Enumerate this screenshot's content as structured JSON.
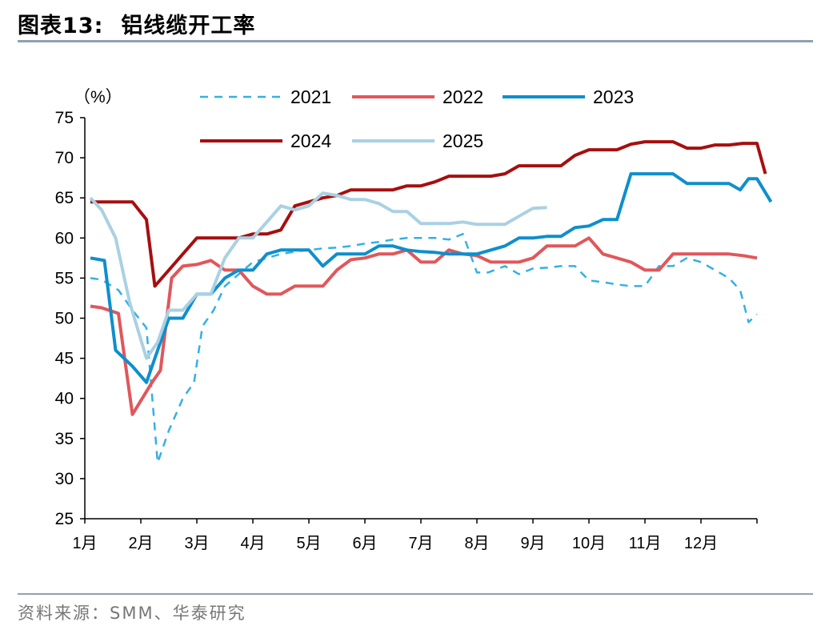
{
  "figure": {
    "number": "图表13:",
    "title": "铝线缆开工率",
    "source": "资料来源：SMM、华泰研究"
  },
  "chart_data": {
    "type": "line",
    "title": "铝线缆开工率",
    "ylabel": "（%）",
    "xlabel": "",
    "ylim": [
      25,
      75
    ],
    "yticks": [
      25,
      30,
      35,
      40,
      45,
      50,
      55,
      60,
      65,
      70,
      75
    ],
    "x_domain": [
      0,
      12
    ],
    "x_tick_labels": [
      "1月",
      "2月",
      "3月",
      "4月",
      "5月",
      "6月",
      "7月",
      "8月",
      "9月",
      "10月",
      "11月",
      "12月"
    ],
    "grid": false,
    "legend_position": "top",
    "series": [
      {
        "name": "2021",
        "color": "#33B0E6",
        "style": "dashed",
        "points": [
          [
            0.1,
            55
          ],
          [
            0.3,
            54.8
          ],
          [
            0.6,
            53.5
          ],
          [
            0.85,
            51
          ],
          [
            1.1,
            48.8
          ],
          [
            1.3,
            32
          ],
          [
            1.5,
            36
          ],
          [
            1.75,
            40
          ],
          [
            1.95,
            42
          ],
          [
            2.1,
            49
          ],
          [
            2.3,
            51
          ],
          [
            2.5,
            54
          ],
          [
            2.75,
            55.5
          ],
          [
            3.0,
            57
          ],
          [
            3.25,
            57.5
          ],
          [
            3.5,
            58
          ],
          [
            3.75,
            58.3
          ],
          [
            4.0,
            58.5
          ],
          [
            4.25,
            58.7
          ],
          [
            4.5,
            58.8
          ],
          [
            4.75,
            59
          ],
          [
            5.0,
            59.3
          ],
          [
            5.25,
            59.5
          ],
          [
            5.5,
            59.8
          ],
          [
            5.75,
            60
          ],
          [
            6.0,
            60
          ],
          [
            6.25,
            60
          ],
          [
            6.5,
            59.8
          ],
          [
            6.75,
            60.5
          ],
          [
            7.0,
            55.7
          ],
          [
            7.2,
            55.7
          ],
          [
            7.5,
            56.5
          ],
          [
            7.75,
            55.5
          ],
          [
            8.0,
            56.2
          ],
          [
            8.25,
            56.3
          ],
          [
            8.5,
            56.5
          ],
          [
            8.75,
            56.5
          ],
          [
            9.0,
            54.7
          ],
          [
            9.25,
            54.5
          ],
          [
            9.5,
            54.2
          ],
          [
            9.75,
            54
          ],
          [
            10.0,
            54
          ],
          [
            10.25,
            56.5
          ],
          [
            10.5,
            56.5
          ],
          [
            10.75,
            57.5
          ],
          [
            11.0,
            57
          ],
          [
            11.25,
            56
          ],
          [
            11.5,
            55
          ],
          [
            11.7,
            53.5
          ],
          [
            11.85,
            49.5
          ],
          [
            12.0,
            50.5
          ]
        ]
      },
      {
        "name": "2022",
        "color": "#E0575B",
        "style": "solid",
        "points": [
          [
            0.1,
            51.5
          ],
          [
            0.3,
            51.3
          ],
          [
            0.6,
            50.6
          ],
          [
            0.85,
            38
          ],
          [
            1.2,
            42
          ],
          [
            1.35,
            43.5
          ],
          [
            1.55,
            55
          ],
          [
            1.75,
            56.5
          ],
          [
            2.0,
            56.7
          ],
          [
            2.25,
            57.2
          ],
          [
            2.5,
            56
          ],
          [
            2.75,
            56
          ],
          [
            3.0,
            54
          ],
          [
            3.25,
            53
          ],
          [
            3.5,
            53
          ],
          [
            3.75,
            54
          ],
          [
            4.0,
            54
          ],
          [
            4.25,
            54
          ],
          [
            4.5,
            56
          ],
          [
            4.75,
            57.3
          ],
          [
            5.0,
            57.5
          ],
          [
            5.25,
            58
          ],
          [
            5.5,
            58
          ],
          [
            5.75,
            58.5
          ],
          [
            6.0,
            57
          ],
          [
            6.25,
            57
          ],
          [
            6.5,
            58.5
          ],
          [
            6.75,
            58
          ],
          [
            7.0,
            57.8
          ],
          [
            7.25,
            57
          ],
          [
            7.5,
            57
          ],
          [
            7.75,
            57
          ],
          [
            8.0,
            57.5
          ],
          [
            8.25,
            59
          ],
          [
            8.5,
            59
          ],
          [
            8.75,
            59
          ],
          [
            9.0,
            60
          ],
          [
            9.25,
            58
          ],
          [
            9.5,
            57.5
          ],
          [
            9.75,
            57
          ],
          [
            10.0,
            56
          ],
          [
            10.25,
            56
          ],
          [
            10.5,
            58
          ],
          [
            10.75,
            58
          ],
          [
            11.0,
            58
          ],
          [
            11.25,
            58
          ],
          [
            11.5,
            58
          ],
          [
            11.75,
            57.8
          ],
          [
            12.0,
            57.5
          ]
        ]
      },
      {
        "name": "2023",
        "color": "#0E8FCC",
        "style": "solid",
        "points": [
          [
            0.1,
            57.5
          ],
          [
            0.35,
            57.2
          ],
          [
            0.55,
            46
          ],
          [
            0.85,
            44
          ],
          [
            1.1,
            42
          ],
          [
            1.25,
            45
          ],
          [
            1.5,
            50
          ],
          [
            1.75,
            50
          ],
          [
            2.0,
            53
          ],
          [
            2.25,
            53
          ],
          [
            2.5,
            55
          ],
          [
            2.75,
            56
          ],
          [
            3.0,
            56
          ],
          [
            3.25,
            58
          ],
          [
            3.5,
            58.5
          ],
          [
            3.75,
            58.5
          ],
          [
            4.0,
            58.5
          ],
          [
            4.25,
            56.5
          ],
          [
            4.5,
            58
          ],
          [
            4.75,
            58
          ],
          [
            5.0,
            58
          ],
          [
            5.25,
            59
          ],
          [
            5.5,
            59
          ],
          [
            5.75,
            58.5
          ],
          [
            6.0,
            58.3
          ],
          [
            6.25,
            58.2
          ],
          [
            6.5,
            58
          ],
          [
            6.75,
            58
          ],
          [
            7.0,
            58
          ],
          [
            7.25,
            58.5
          ],
          [
            7.5,
            59
          ],
          [
            7.75,
            60
          ],
          [
            8.0,
            60
          ],
          [
            8.25,
            60.2
          ],
          [
            8.5,
            60.2
          ],
          [
            8.75,
            61.3
          ],
          [
            9.0,
            61.5
          ],
          [
            9.25,
            62.3
          ],
          [
            9.5,
            62.3
          ],
          [
            9.75,
            68
          ],
          [
            10.0,
            68
          ],
          [
            10.25,
            68
          ],
          [
            10.5,
            68
          ],
          [
            10.75,
            66.8
          ],
          [
            11.0,
            66.8
          ],
          [
            11.25,
            66.8
          ],
          [
            11.5,
            66.8
          ],
          [
            11.7,
            66
          ],
          [
            11.85,
            67.4
          ],
          [
            12.0,
            67.4
          ],
          [
            12.25,
            64.5
          ]
        ]
      },
      {
        "name": "2024",
        "color": "#A60F0F",
        "style": "solid",
        "points": [
          [
            0.1,
            64.5
          ],
          [
            0.4,
            64.5
          ],
          [
            0.85,
            64.5
          ],
          [
            1.1,
            62.3
          ],
          [
            1.25,
            54
          ],
          [
            1.5,
            56
          ],
          [
            1.75,
            58
          ],
          [
            2.0,
            60
          ],
          [
            2.25,
            60
          ],
          [
            2.5,
            60
          ],
          [
            2.75,
            60
          ],
          [
            3.0,
            60.5
          ],
          [
            3.25,
            60.5
          ],
          [
            3.5,
            61
          ],
          [
            3.75,
            64
          ],
          [
            4.0,
            64.5
          ],
          [
            4.25,
            65
          ],
          [
            4.5,
            65.3
          ],
          [
            4.75,
            66
          ],
          [
            5.0,
            66
          ],
          [
            5.25,
            66
          ],
          [
            5.5,
            66
          ],
          [
            5.75,
            66.5
          ],
          [
            6.0,
            66.5
          ],
          [
            6.25,
            67
          ],
          [
            6.5,
            67.7
          ],
          [
            6.75,
            67.7
          ],
          [
            7.0,
            67.7
          ],
          [
            7.25,
            67.7
          ],
          [
            7.5,
            68
          ],
          [
            7.75,
            69
          ],
          [
            8.0,
            69
          ],
          [
            8.25,
            69
          ],
          [
            8.5,
            69
          ],
          [
            8.75,
            70.3
          ],
          [
            9.0,
            71
          ],
          [
            9.25,
            71
          ],
          [
            9.5,
            71
          ],
          [
            9.75,
            71.7
          ],
          [
            10.0,
            72
          ],
          [
            10.25,
            72
          ],
          [
            10.5,
            72
          ],
          [
            10.75,
            71.2
          ],
          [
            11.0,
            71.2
          ],
          [
            11.25,
            71.6
          ],
          [
            11.5,
            71.6
          ],
          [
            11.75,
            71.8
          ],
          [
            12.0,
            71.8
          ],
          [
            12.15,
            68
          ]
        ]
      },
      {
        "name": "2025",
        "color": "#A9D1E2",
        "style": "solid",
        "points": [
          [
            0.1,
            65
          ],
          [
            0.3,
            63.5
          ],
          [
            0.55,
            60
          ],
          [
            0.8,
            52
          ],
          [
            1.1,
            45
          ],
          [
            1.3,
            47
          ],
          [
            1.5,
            51
          ],
          [
            1.75,
            51
          ],
          [
            2.0,
            53
          ],
          [
            2.25,
            53
          ],
          [
            2.5,
            57.5
          ],
          [
            2.75,
            60
          ],
          [
            3.0,
            60
          ],
          [
            3.25,
            62
          ],
          [
            3.5,
            64
          ],
          [
            3.75,
            63.5
          ],
          [
            4.0,
            64
          ],
          [
            4.25,
            65.6
          ],
          [
            4.5,
            65.3
          ],
          [
            4.75,
            64.8
          ],
          [
            5.0,
            64.8
          ],
          [
            5.25,
            64.3
          ],
          [
            5.5,
            63.3
          ],
          [
            5.75,
            63.3
          ],
          [
            6.0,
            61.8
          ],
          [
            6.25,
            61.8
          ],
          [
            6.5,
            61.8
          ],
          [
            6.75,
            62
          ],
          [
            7.0,
            61.7
          ],
          [
            7.25,
            61.7
          ],
          [
            7.5,
            61.7
          ],
          [
            7.75,
            62.7
          ],
          [
            8.0,
            63.7
          ],
          [
            8.25,
            63.8
          ]
        ]
      }
    ]
  }
}
